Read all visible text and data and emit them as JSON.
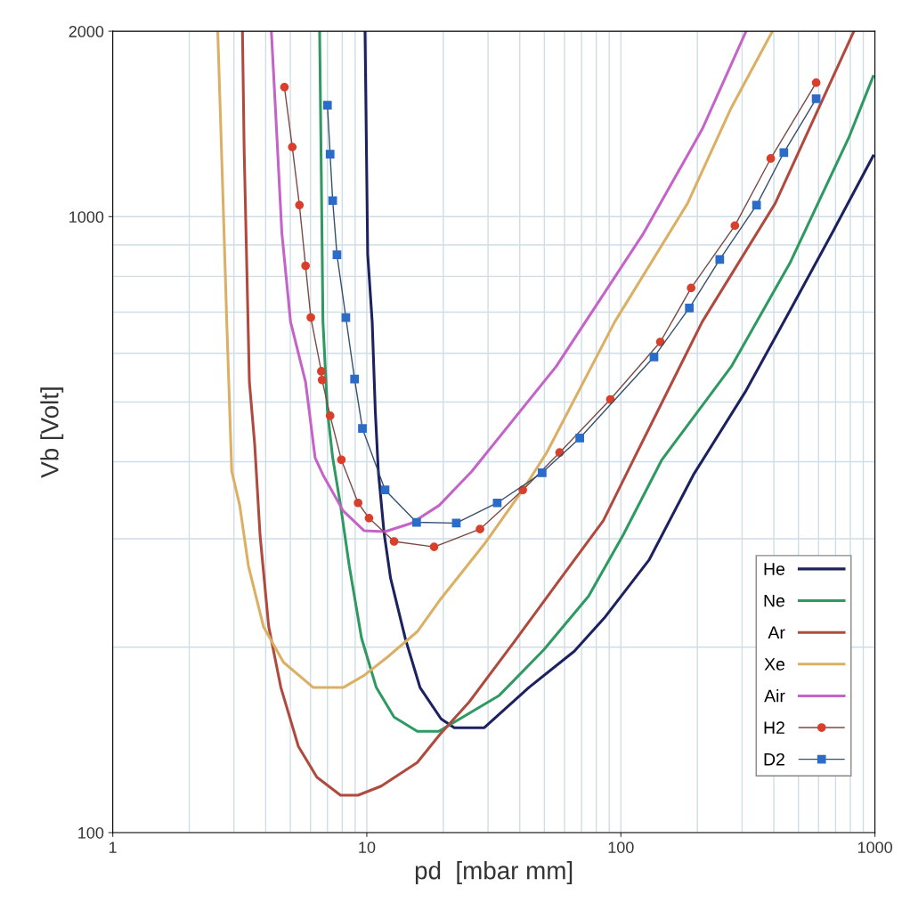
{
  "chart_data": {
    "type": "line",
    "xlabel": "pd  [mbar mm]",
    "ylabel": "Vb [Volt]",
    "log": "xy",
    "xlim": [
      1,
      1000
    ],
    "xticks": [
      1,
      10,
      100,
      1000
    ],
    "ylim": [
      100,
      2000
    ],
    "yticks": [
      100,
      1000,
      2000
    ],
    "grid": true,
    "legend": "bottom right",
    "line_style": "solid",
    "series": [
      {
        "name": "He",
        "color": "#1c2160",
        "marker": "none",
        "x": [
          9.84,
          10.08,
          10.5,
          10.8,
          11.1,
          11.7,
          12.4,
          14.2,
          16.2,
          19.6,
          22.1,
          29.0,
          43.4,
          65.6,
          86.0,
          129,
          193,
          311,
          463,
          688,
          984
        ],
        "values": [
          2000,
          869,
          675,
          483,
          386,
          306,
          259,
          206,
          172,
          153,
          148,
          148,
          172,
          197,
          223,
          277,
          381,
          522,
          704,
          951,
          1255
        ]
      },
      {
        "name": "Ne",
        "color": "#2e9a62",
        "marker": "none",
        "x": [
          6.52,
          6.62,
          6.72,
          7.0,
          7.34,
          7.88,
          8.53,
          9.53,
          10.9,
          12.8,
          15.8,
          19.2,
          33.2,
          49.7,
          74.6,
          102,
          145,
          272,
          463,
          788,
          984
        ],
        "values": [
          2000,
          1174,
          675,
          483,
          406,
          340,
          271,
          207,
          172,
          154,
          146,
          146,
          167,
          198,
          242,
          304,
          403,
          571,
          841,
          1342,
          1689
        ]
      },
      {
        "name": "Ar",
        "color": "#b04a3e",
        "marker": "none",
        "x": [
          3.24,
          3.29,
          3.45,
          3.62,
          3.8,
          4.11,
          4.59,
          5.38,
          6.36,
          7.88,
          9.24,
          11.4,
          15.8,
          19.3,
          25.3,
          38.0,
          56.9,
          85.3,
          112,
          209,
          405,
          826
        ],
        "values": [
          2000,
          1284,
          539,
          427,
          304,
          216,
          172,
          138,
          123,
          115,
          115,
          119,
          130,
          144,
          163,
          204,
          256,
          321,
          403,
          675,
          1051,
          2000
        ]
      },
      {
        "name": "Xe",
        "color": "#dcb064",
        "marker": "none",
        "x": [
          2.59,
          2.72,
          2.81,
          2.94,
          3.16,
          3.42,
          3.92,
          4.7,
          6.16,
          8.07,
          9.77,
          12.1,
          15.8,
          19.3,
          29.0,
          41.1,
          50.9,
          94.6,
          183,
          272,
          395
        ],
        "values": [
          2000,
          1051,
          675,
          386,
          340,
          271,
          216,
          189,
          172,
          172,
          180,
          193,
          212,
          238,
          294,
          360,
          413,
          675,
          1051,
          1503,
          2000
        ]
      },
      {
        "name": "Air",
        "color": "#c464c8",
        "marker": "none",
        "x": [
          4.21,
          4.38,
          4.63,
          5.01,
          5.74,
          6.26,
          6.72,
          8.07,
          9.77,
          11.8,
          15.0,
          19.3,
          25.9,
          55.6,
          123,
          209,
          311
        ],
        "values": [
          2000,
          1468,
          941,
          675,
          539,
          406,
          381,
          333,
          309,
          308,
          318,
          340,
          386,
          571,
          941,
          1387,
          2000
        ]
      },
      {
        "name": "H2",
        "color": "#d8402c",
        "marker": "circle",
        "x": [
          4.74,
          5.09,
          5.43,
          5.74,
          6.02,
          6.62,
          6.67,
          7.17,
          7.94,
          9.24,
          10.2,
          12.8,
          18.4,
          27.9,
          41.1,
          57.4,
          90.9,
          143,
          189,
          281,
          389,
          587
        ],
        "values": [
          1623,
          1297,
          1044,
          832,
          686,
          561,
          543,
          475,
          403,
          343,
          324,
          297,
          291,
          311,
          360,
          414,
          505,
          626,
          766,
          967,
          1243,
          1650
        ]
      },
      {
        "name": "D2",
        "color": "#2a6cc8",
        "marker": "square",
        "x": [
          7.0,
          7.17,
          7.34,
          7.63,
          8.27,
          8.95,
          9.61,
          11.8,
          15.7,
          22.5,
          32.6,
          49.0,
          68.9,
          135,
          186,
          245,
          342,
          438,
          587
        ],
        "values": [
          1517,
          1263,
          1062,
          867,
          686,
          545,
          453,
          360,
          319,
          318,
          343,
          384,
          437,
          592,
          711,
          852,
          1044,
          1271,
          1554
        ]
      }
    ]
  }
}
